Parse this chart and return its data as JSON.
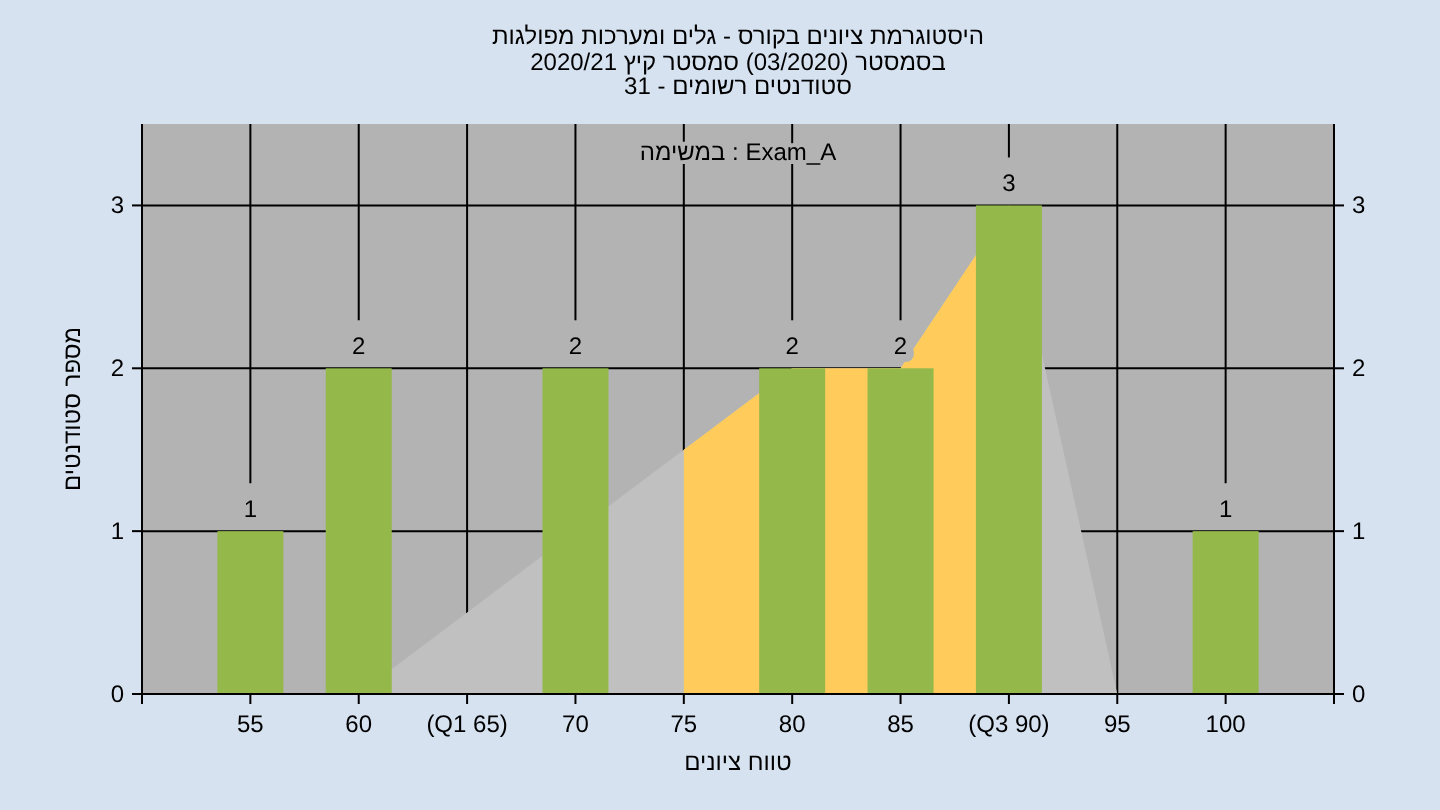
{
  "chart_data": {
    "type": "bar",
    "title": "היסטוגרמת ציונים בקורס - גלים ומערכות מפולגות",
    "subtitle": "בסמסטר  (03/2020)  סמסטר קיץ 2020/21\nסטודנטים רשומים - 31",
    "annotations": [
      "במשימה : Exam_A"
    ],
    "xlabel": "טווח ציונים",
    "ylabel": "מספר סטודנטים",
    "categories": [
      "55",
      "60",
      "(Q1 65)",
      "70",
      "75",
      "80",
      "85",
      "(Q3 90)",
      "95",
      "100"
    ],
    "series": [
      {
        "type": "area",
        "color": "#c0c0c0",
        "values": [
          0,
          0,
          0.5,
          null,
          1.5,
          2,
          2,
          3,
          0,
          0
        ]
      },
      {
        "type": "area",
        "color": "#ffcc5c",
        "values": [
          null,
          null,
          null,
          null,
          1.5,
          2,
          2,
          3,
          null,
          null
        ]
      },
      {
        "color": "#94b84a",
        "values": [
          1,
          2,
          0,
          2,
          0,
          2,
          2,
          3,
          0,
          1
        ],
        "value_labels": [
          "1",
          "2",
          null,
          "2",
          null,
          "2",
          "2",
          "3",
          null,
          "1"
        ]
      }
    ],
    "ylim": [
      0,
      3.5
    ],
    "yticks": [
      0,
      1,
      2,
      3
    ],
    "y2lim": [
      0,
      3.5
    ],
    "y2ticks": [
      0,
      1,
      2,
      3
    ],
    "grid": true
  }
}
